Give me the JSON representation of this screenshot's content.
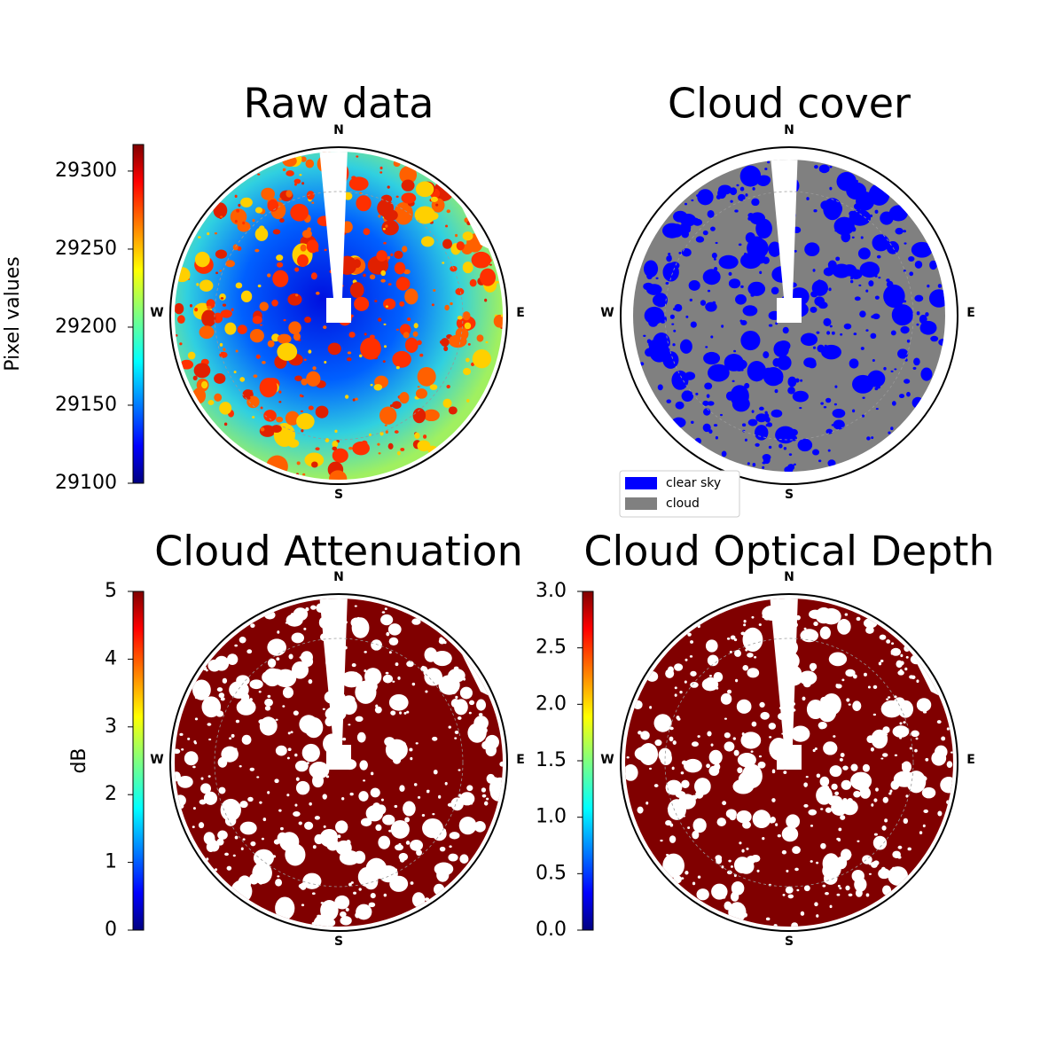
{
  "chart_data": [
    {
      "type": "image",
      "title": "Raw data",
      "directions": {
        "north": "N",
        "east": "E",
        "south": "S",
        "west": "W"
      },
      "colorbar": {
        "label": "Pixel values",
        "colormap": "jet",
        "lim": [
          29100,
          29317
        ],
        "ticks": [
          29100,
          29150,
          29200,
          29250,
          29300
        ]
      }
    },
    {
      "type": "image",
      "title": "Cloud cover",
      "directions": {
        "north": "N",
        "east": "E",
        "south": "S",
        "west": "W"
      },
      "legend": {
        "series": [
          {
            "name": "clear sky",
            "color": "#0000ff"
          },
          {
            "name": "cloud",
            "color": "#808080"
          }
        ]
      }
    },
    {
      "type": "image",
      "title": "Cloud Attenuation",
      "directions": {
        "north": "N",
        "east": "E",
        "south": "S",
        "west": "W"
      },
      "colorbar": {
        "label": "dB",
        "colormap": "jet",
        "lim": [
          0,
          5
        ],
        "ticks": [
          0,
          1,
          2,
          3,
          4,
          5
        ]
      }
    },
    {
      "type": "image",
      "title": "Cloud Optical Depth",
      "directions": {
        "north": "N",
        "east": "E",
        "south": "S",
        "west": "W"
      },
      "colorbar": {
        "colormap": "jet",
        "lim": [
          0,
          3
        ],
        "ticks": [
          {
            "value": 0,
            "label": "0.0"
          },
          0.5,
          {
            "value": 1,
            "label": "1.0"
          },
          1.5,
          {
            "value": 2,
            "label": "2.0"
          },
          2.5,
          {
            "value": 3,
            "label": "3.0"
          }
        ]
      }
    }
  ]
}
